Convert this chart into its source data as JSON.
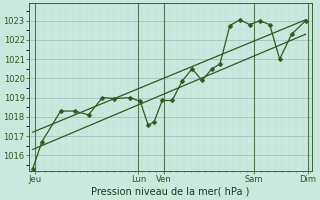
{
  "bg_color": "#cce8de",
  "grid_major_color": "#99bbbb",
  "grid_minor_color": "#bbdddd",
  "line_color": "#2d5a1e",
  "spine_color": "#336633",
  "title": "Pression niveau de la mer( hPa )",
  "yticks": [
    1016,
    1017,
    1018,
    1019,
    1020,
    1021,
    1022,
    1023
  ],
  "ylim": [
    1015.2,
    1023.9
  ],
  "xlim": [
    -0.05,
    7.05
  ],
  "day_tick_pos": [
    0.1,
    2.7,
    3.35,
    5.6,
    6.95
  ],
  "day_labels": [
    "Jeu",
    "Lun",
    "Ven",
    "Sam",
    "Dim"
  ],
  "vlines": [
    0.1,
    2.7,
    3.35,
    5.6,
    6.95
  ],
  "line1_x": [
    0.05,
    0.28,
    0.75,
    1.1,
    1.45,
    1.8,
    2.1,
    2.5,
    2.75,
    2.95,
    3.1,
    3.3,
    3.55,
    3.8,
    4.05,
    4.3,
    4.55,
    4.75,
    5.0,
    5.25,
    5.5,
    5.75,
    6.0,
    6.25,
    6.55,
    6.9
  ],
  "line1_y": [
    1015.3,
    1016.7,
    1018.3,
    1018.3,
    1018.1,
    1019.0,
    1018.95,
    1019.0,
    1018.8,
    1017.55,
    1017.75,
    1018.85,
    1018.85,
    1019.85,
    1020.5,
    1019.9,
    1020.5,
    1020.75,
    1022.75,
    1023.05,
    1022.8,
    1023.0,
    1022.8,
    1021.0,
    1022.3,
    1023.0
  ],
  "line2_x": [
    0.05,
    6.9
  ],
  "line2_y": [
    1016.3,
    1022.3
  ],
  "line3_x": [
    0.05,
    6.9
  ],
  "line3_y": [
    1017.2,
    1023.05
  ],
  "marker_size": 2.5,
  "title_fontsize": 7,
  "tick_fontsize": 6
}
